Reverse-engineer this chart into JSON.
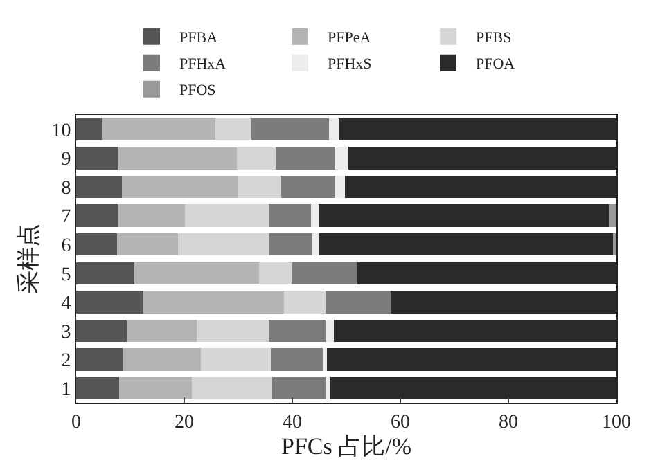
{
  "chart_data": {
    "type": "bar",
    "orientation": "horizontal",
    "stacked": true,
    "xlabel": "PFCs 占比/%",
    "ylabel": "采样点",
    "categories": [
      "10",
      "9",
      "8",
      "7",
      "6",
      "5",
      "4",
      "3",
      "2",
      "1"
    ],
    "series": [
      {
        "name": "PFBA",
        "color": "#555555",
        "values": [
          4.8,
          7.7,
          8.4,
          7.7,
          7.5,
          10.8,
          12.4,
          9.3,
          8.6,
          7.9
        ]
      },
      {
        "name": "PFPeA",
        "color": "#b4b4b4",
        "values": [
          21.0,
          22.0,
          21.6,
          12.4,
          11.4,
          23.1,
          26.0,
          13.0,
          14.5,
          13.5
        ]
      },
      {
        "name": "PFBS",
        "color": "#d6d6d6",
        "values": [
          6.6,
          7.2,
          7.8,
          15.6,
          16.8,
          6.0,
          7.8,
          13.4,
          12.9,
          14.9
        ]
      },
      {
        "name": "PFHxA",
        "color": "#7c7c7c",
        "values": [
          14.4,
          11.1,
          10.2,
          7.8,
          8.0,
          12.2,
          12.0,
          10.5,
          9.6,
          9.9
        ]
      },
      {
        "name": "PFHxS",
        "color": "#ececec",
        "values": [
          1.8,
          2.4,
          1.7,
          1.4,
          1.2,
          0,
          0,
          1.5,
          0.8,
          0.9
        ]
      },
      {
        "name": "PFOA",
        "color": "#2a2a2a",
        "values": [
          51.4,
          49.6,
          50.3,
          53.7,
          54.4,
          47.9,
          41.8,
          52.3,
          53.6,
          52.9
        ]
      },
      {
        "name": "PFOS",
        "color": "#999999",
        "values": [
          0,
          0,
          0,
          1.4,
          0.7,
          0,
          0,
          0,
          0,
          0
        ]
      }
    ],
    "xlim": [
      0,
      100
    ],
    "xticks": [
      0,
      20,
      40,
      60,
      80,
      100
    ],
    "legend": "top"
  }
}
